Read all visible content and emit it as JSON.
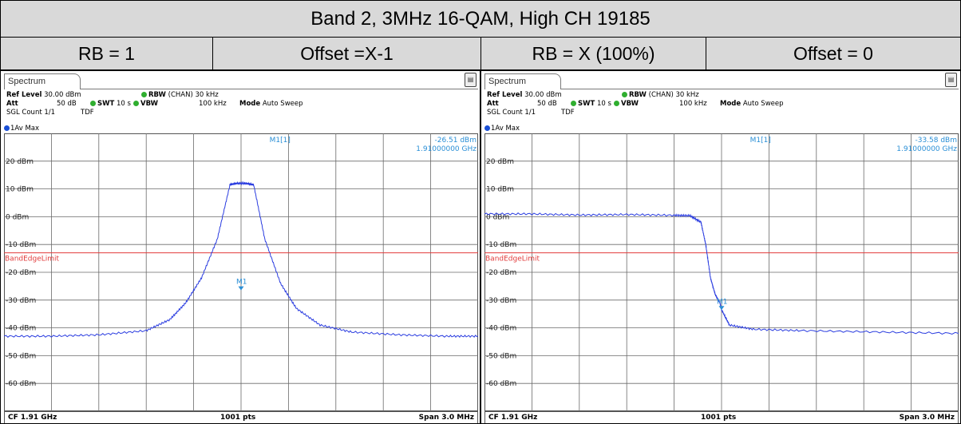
{
  "title": "Band 2, 3MHz 16-QAM, High CH 19185",
  "headers": [
    "RB = 1",
    "Offset =X-1",
    "RB = X (100%)",
    "Offset = 0"
  ],
  "instrument": {
    "tab": "Spectrum",
    "ref_level_label": "Ref Level",
    "ref_level": "30.00 dBm",
    "att_label": "Att",
    "att": "50 dB",
    "swt_label": "SWT",
    "swt": "10 s",
    "rbw_label": "RBW",
    "rbw": "(CHAN) 30 kHz",
    "vbw_label": "VBW",
    "vbw": "100 kHz",
    "mode_label": "Mode",
    "mode": "Auto Sweep",
    "sgl": "SGL Count 1/1",
    "tdf": "TDF",
    "trace": "1Av Max",
    "cf": "CF 1.91 GHz",
    "pts": "1001 pts",
    "span": "Span 3.0 MHz",
    "limit_label": "BandEdgeLimit",
    "marker_label": "M1[1]",
    "marker_tag": "M1",
    "y_labels": [
      "20 dBm",
      "10 dBm",
      "0 dBm",
      "-10 dBm",
      "-20 dBm",
      "-30 dBm",
      "-40 dBm",
      "-50 dBm",
      "-60 dBm"
    ]
  },
  "colors": {
    "trace": "#2b3de0",
    "limit": "#e23c3c",
    "marker": "#2a8fd6",
    "header_bg": "#d9d9d9"
  },
  "chart_data": [
    {
      "type": "line",
      "x_unit": "MHz offset from CF",
      "xlim": [
        -1.5,
        1.5
      ],
      "ylim": [
        -70,
        30
      ],
      "limit_dbm": -13,
      "marker": {
        "value": "-26.51 dBm",
        "freq": "1.91000000 GHz",
        "x": 0.0,
        "y": -26.51
      },
      "series": [
        {
          "x": [
            -1.5,
            -1.2,
            -0.9,
            -0.6,
            -0.45,
            -0.35,
            -0.25,
            -0.15,
            -0.07,
            -0.03,
            0.03,
            0.08,
            0.15,
            0.25,
            0.35,
            0.5,
            0.7,
            1.0,
            1.3,
            1.5
          ],
          "y": [
            -43,
            -43,
            -42.5,
            -41,
            -37,
            -31,
            -22,
            -8,
            11.5,
            12,
            12,
            11.5,
            -8,
            -24,
            -33,
            -39,
            -41.5,
            -42.5,
            -43,
            -43
          ]
        }
      ]
    },
    {
      "type": "line",
      "x_unit": "MHz offset from CF",
      "xlim": [
        -1.5,
        1.5
      ],
      "ylim": [
        -70,
        30
      ],
      "limit_dbm": -13,
      "marker": {
        "value": "-33.58 dBm",
        "freq": "1.91000000 GHz",
        "x": 0.0,
        "y": -33.58
      },
      "series": [
        {
          "x": [
            -1.5,
            -1.2,
            -0.9,
            -0.6,
            -0.3,
            -0.2,
            -0.13,
            -0.1,
            -0.07,
            -0.04,
            -0.01,
            0.0,
            0.05,
            0.2,
            0.5,
            1.0,
            1.5
          ],
          "y": [
            1,
            1,
            0.6,
            0.8,
            0.5,
            0.4,
            -2,
            -10,
            -22,
            -28,
            -31,
            -33.5,
            -39,
            -40.5,
            -41,
            -41.5,
            -42
          ]
        }
      ]
    }
  ]
}
